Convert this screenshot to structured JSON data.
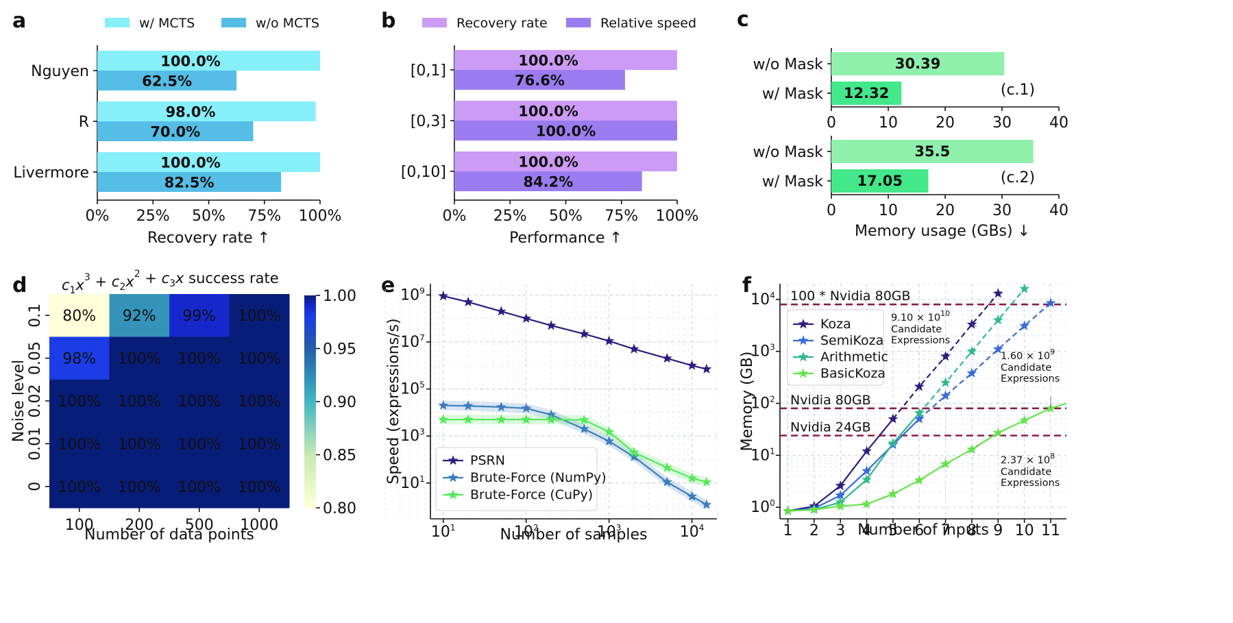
{
  "colors": {
    "a_with": "#86eff8",
    "a_without": "#55bde6",
    "b_recovery": "#cc9bf6",
    "b_speed": "#9b7cf0",
    "c_without": "#8ff0ac",
    "c_with": "#43e88a",
    "psrn": "#2c1d7e",
    "numpy": "#3a7cbe",
    "cupy": "#53e85a",
    "koza": "#2c1d7e",
    "semikoza": "#3a6ad6",
    "arith": "#2db98a",
    "basic": "#66e24a",
    "hw_line": "#8a1c45"
  },
  "chart_data": [
    {
      "id": "a",
      "panel_letter": "a",
      "type": "bar",
      "orientation": "horizontal",
      "categories": [
        "Nguyen",
        "R",
        "Livermore"
      ],
      "series": [
        {
          "name": "w/ MCTS",
          "values": [
            100.0,
            98.0,
            100.0
          ],
          "labels": [
            "100.0%",
            "98.0%",
            "100.0%"
          ]
        },
        {
          "name": "w/o MCTS",
          "values": [
            62.5,
            70.0,
            82.5
          ],
          "labels": [
            "62.5%",
            "70.0%",
            "82.5%"
          ]
        }
      ],
      "xlabel": "Recovery rate",
      "xlabel_arrow": "↑",
      "xlim": [
        0,
        100
      ],
      "xticks": [
        0,
        25,
        50,
        75,
        100
      ],
      "xtick_labels": [
        "0%",
        "25%",
        "50%",
        "75%",
        "100%"
      ],
      "legend": "top"
    },
    {
      "id": "b",
      "panel_letter": "b",
      "type": "bar",
      "orientation": "horizontal",
      "categories": [
        "[0,1]",
        "[0,3]",
        "[0,10]"
      ],
      "series": [
        {
          "name": "Recovery rate",
          "values": [
            100.0,
            100.0,
            100.0
          ],
          "labels": [
            "100.0%",
            "100.0%",
            "100.0%"
          ]
        },
        {
          "name": "Relative speed",
          "values": [
            76.6,
            100.0,
            84.2
          ],
          "labels": [
            "76.6%",
            "100.0%",
            "84.2%"
          ]
        }
      ],
      "xlabel": "Performance",
      "xlabel_arrow": "↑",
      "xlim": [
        0,
        100
      ],
      "xticks": [
        0,
        25,
        50,
        75,
        100
      ],
      "xtick_labels": [
        "0%",
        "25%",
        "50%",
        "75%",
        "100%"
      ],
      "legend": "top"
    },
    {
      "id": "c",
      "panel_letter": "c",
      "type": "bar",
      "orientation": "horizontal",
      "subplots": [
        {
          "tag": "(c.1)",
          "categories": [
            "w/o Mask",
            "w/ Mask"
          ],
          "values": [
            30.39,
            12.32
          ],
          "labels": [
            "30.39",
            "12.32"
          ]
        },
        {
          "tag": "(c.2)",
          "categories": [
            "w/o Mask",
            "w/ Mask"
          ],
          "values": [
            35.5,
            17.05
          ],
          "labels": [
            "35.5",
            "17.05"
          ]
        }
      ],
      "xlabel": "Memory usage (GBs)",
      "xlabel_arrow": "↓",
      "xlim": [
        0,
        40
      ],
      "xticks": [
        0,
        10,
        20,
        30,
        40
      ],
      "xtick_labels": [
        "0",
        "10",
        "20",
        "30",
        "40"
      ]
    },
    {
      "id": "d",
      "panel_letter": "d",
      "type": "heatmap",
      "title_parts": [
        "c",
        "1",
        "x",
        "3",
        " + ",
        "c",
        "2",
        "x",
        "2",
        " + ",
        "c",
        "3",
        "x",
        " success rate"
      ],
      "xlabel": "Number of data points",
      "ylabel": "Noise level",
      "x_categories": [
        "100",
        "200",
        "500",
        "1000"
      ],
      "y_categories": [
        "0.1",
        "0.05",
        "0.02",
        "0.01",
        "0"
      ],
      "values": [
        [
          0.8,
          0.92,
          0.99,
          1.0
        ],
        [
          0.98,
          1.0,
          1.0,
          1.0
        ],
        [
          1.0,
          1.0,
          1.0,
          1.0
        ],
        [
          1.0,
          1.0,
          1.0,
          1.0
        ],
        [
          1.0,
          1.0,
          1.0,
          1.0
        ]
      ],
      "cell_labels": [
        [
          "80%",
          "92%",
          "99%",
          "100%"
        ],
        [
          "98%",
          "100%",
          "100%",
          "100%"
        ],
        [
          "100%",
          "100%",
          "100%",
          "100%"
        ],
        [
          "100%",
          "100%",
          "100%",
          "100%"
        ],
        [
          "100%",
          "100%",
          "100%",
          "100%"
        ]
      ],
      "colorbar_range": [
        0.8,
        1.0
      ],
      "colorbar_ticks": [
        1.0,
        0.95,
        0.9,
        0.85,
        0.8
      ],
      "colorbar_tick_labels": [
        "1.00",
        "0.95",
        "0.90",
        "0.85",
        "0.80"
      ]
    },
    {
      "id": "e",
      "panel_letter": "e",
      "type": "line",
      "xscale": "log",
      "yscale": "log",
      "xlabel": "Number of samples",
      "ylabel": "Speed (expressions/s)",
      "xlim": [
        7,
        20000
      ],
      "ylim": [
        0.3,
        3000000000
      ],
      "xticks": [
        10,
        100,
        1000,
        10000
      ],
      "xtick_labels": [
        [
          "10",
          "1"
        ],
        [
          "10",
          "2"
        ],
        [
          "10",
          "3"
        ],
        [
          "10",
          "4"
        ]
      ],
      "yticks": [
        10,
        1000,
        100000,
        10000000,
        1000000000
      ],
      "ytick_labels": [
        [
          "10",
          "1"
        ],
        [
          "10",
          "3"
        ],
        [
          "10",
          "5"
        ],
        [
          "10",
          "7"
        ],
        [
          "10",
          "9"
        ]
      ],
      "legend": "bottom-left",
      "series": [
        {
          "name": "PSRN",
          "x": [
            10,
            20,
            50,
            100,
            200,
            500,
            1000,
            2000,
            5000,
            10000,
            15000
          ],
          "y": [
            900000000,
            500000000,
            200000000,
            100000000,
            50000000,
            22000000,
            11000000,
            5000000,
            2000000,
            1000000,
            700000
          ]
        },
        {
          "name": "Brute-Force (NumPy)",
          "x": [
            10,
            20,
            50,
            100,
            200,
            500,
            1000,
            2000,
            5000,
            10000,
            15000
          ],
          "y": [
            20000,
            19000,
            17000,
            15000,
            8000,
            2000,
            600,
            130,
            11,
            2.7,
            1.2
          ]
        },
        {
          "name": "Brute-Force (CuPy)",
          "x": [
            10,
            20,
            50,
            100,
            200,
            500,
            1000,
            2000,
            5000,
            10000,
            15000
          ],
          "y": [
            5000,
            5000,
            5000,
            5000,
            5000,
            4800,
            1500,
            200,
            45,
            16,
            11
          ]
        }
      ]
    },
    {
      "id": "f",
      "panel_letter": "f",
      "type": "line",
      "xscale": "linear",
      "yscale": "log",
      "xlabel": "Number of inputs",
      "ylabel": "Memory (GB)",
      "xlim": [
        0.7,
        11.6
      ],
      "ylim": [
        0.6,
        20000
      ],
      "xticks": [
        1,
        2,
        3,
        4,
        5,
        6,
        7,
        8,
        9,
        10,
        11
      ],
      "xtick_labels": [
        "1",
        "2",
        "3",
        "4",
        "5",
        "6",
        "7",
        "8",
        "9",
        "10",
        "11"
      ],
      "yticks": [
        1,
        10,
        100,
        1000,
        10000
      ],
      "ytick_labels": [
        [
          "10",
          "0"
        ],
        [
          "10",
          "1"
        ],
        [
          "10",
          "2"
        ],
        [
          "10",
          "3"
        ],
        [
          "10",
          "4"
        ]
      ],
      "hlines": [
        {
          "y": 8000,
          "label": "100 * Nvidia 80GB"
        },
        {
          "y": 80,
          "label": "Nvidia 80GB"
        },
        {
          "y": 24,
          "label": "Nvidia 24GB"
        }
      ],
      "series": [
        {
          "name": "Koza",
          "x": [
            1,
            2,
            3,
            4,
            5,
            6,
            7,
            8,
            9
          ],
          "y": [
            0.85,
            1.05,
            2.6,
            12,
            50,
            210,
            800,
            3300,
            13000
          ],
          "solid_until": 5
        },
        {
          "name": "SemiKoza",
          "x": [
            1,
            2,
            3,
            4,
            5,
            6,
            7,
            8,
            9,
            10,
            11
          ],
          "y": [
            0.85,
            0.95,
            1.7,
            5,
            16,
            50,
            140,
            380,
            1100,
            3100,
            8500
          ],
          "solid_until": 6
        },
        {
          "name": "Arithmetic",
          "x": [
            1,
            2,
            3,
            4,
            5,
            6,
            7,
            8,
            9,
            10
          ],
          "y": [
            0.85,
            0.9,
            1.25,
            3.4,
            17,
            65,
            250,
            1000,
            4000,
            16000
          ],
          "solid_until": 6
        },
        {
          "name": "BasicKoza",
          "x": [
            1,
            2,
            3,
            4,
            5,
            6,
            7,
            8,
            9,
            10,
            11,
            11.6
          ],
          "y": [
            0.85,
            0.9,
            1.05,
            1.15,
            1.8,
            3.3,
            6.8,
            13,
            27,
            47,
            80,
            100
          ],
          "solid_until": 12
        }
      ],
      "annotations": [
        {
          "mantissa": "9.10",
          "exponent": "10",
          "lines": [
            "Candidate",
            "Expressions"
          ],
          "points_to": {
            "x": 8,
            "y": 3300
          }
        },
        {
          "mantissa": "1.60",
          "exponent": "9",
          "lines": [
            "Candidate",
            "Expressions"
          ],
          "points_to": {
            "x": 11,
            "y": 80
          }
        },
        {
          "mantissa": "2.37",
          "exponent": "8",
          "lines": [
            "Candidate",
            "Expressions"
          ],
          "points_to": {
            "x": 8.15,
            "y": 15
          }
        }
      ],
      "legend": "top-left"
    }
  ]
}
